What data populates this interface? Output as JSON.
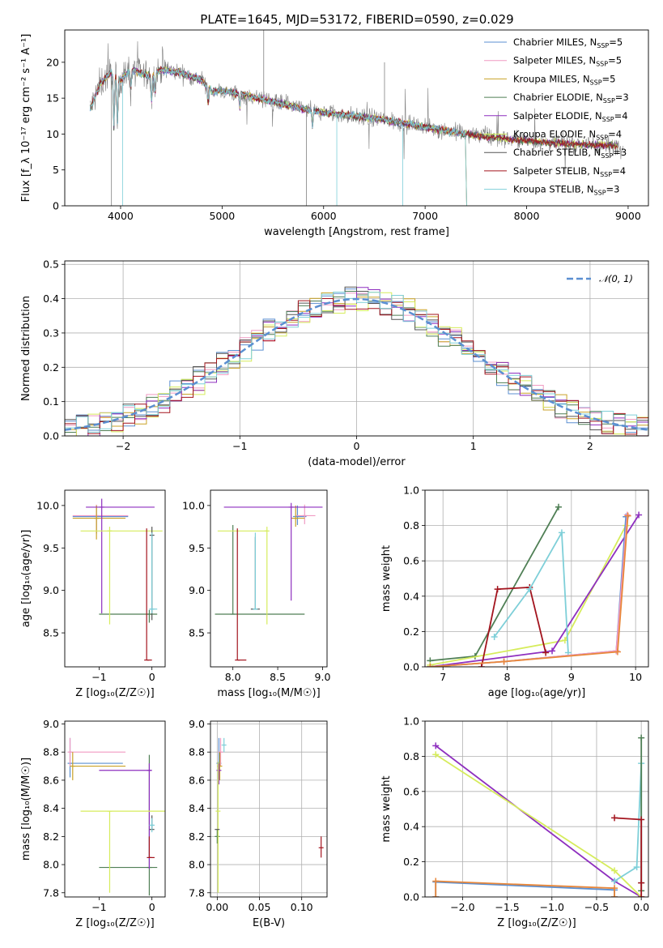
{
  "figure": {
    "title": "PLATE=1645, MJD=53172, FIBERID=0590, z=0.029"
  },
  "colors": {
    "Chabrier MILES": "#5b8fd1",
    "Salpeter MILES": "#f09ac2",
    "Kroupa MILES": "#c9a227",
    "Chabrier ELODIE": "#4f7f55",
    "Salpeter ELODIE": "#8e2fbf",
    "Kroupa ELODIE": "#d6ec5c",
    "Chabrier STELIB": "#555555",
    "Salpeter STELIB": "#a3141e",
    "Kroupa STELIB": "#7ecfd8",
    "orange": "#e8873a",
    "data": "#808080"
  },
  "chart_data": [
    {
      "id": "spectrum",
      "type": "line",
      "title": "PLATE=1645, MJD=53172, FIBERID=0590, z=0.029",
      "xlabel": "wavelength [Angstrom, rest frame]",
      "ylabel": "Flux [f_λ 10^-17 erg cm^-2 s^-1 A^-1]",
      "xlim": [
        3450,
        9200
      ],
      "ylim": [
        0,
        24.5
      ],
      "xticks": [
        4000,
        5000,
        6000,
        7000,
        8000,
        9000
      ],
      "yticks": [
        0,
        5,
        10,
        15,
        20
      ],
      "legend_position": "top-right",
      "legend": [
        {
          "name": "Chabrier MILES",
          "nssp": "5"
        },
        {
          "name": "Salpeter MILES",
          "nssp": "5"
        },
        {
          "name": "Kroupa MILES",
          "nssp": "5"
        },
        {
          "name": "Chabrier ELODIE",
          "nssp": "3"
        },
        {
          "name": "Salpeter ELODIE",
          "nssp": "4"
        },
        {
          "name": "Kroupa ELODIE",
          "nssp": "4"
        },
        {
          "name": "Chabrier STELIB",
          "nssp": "3"
        },
        {
          "name": "Salpeter STELIB",
          "nssp": "4"
        },
        {
          "name": "Kroupa STELIB",
          "nssp": "3"
        }
      ],
      "continuum": [
        [
          3700,
          13.5
        ],
        [
          3800,
          17
        ],
        [
          3900,
          18.5
        ],
        [
          4000,
          17.5
        ],
        [
          4100,
          19
        ],
        [
          4300,
          18
        ],
        [
          4400,
          19
        ],
        [
          4600,
          18.5
        ],
        [
          4800,
          17.5
        ],
        [
          4900,
          16
        ],
        [
          5000,
          16
        ],
        [
          5200,
          15.5
        ],
        [
          5500,
          14.5
        ],
        [
          5800,
          13.5
        ],
        [
          6000,
          13
        ],
        [
          6300,
          12.5
        ],
        [
          6600,
          12
        ],
        [
          7000,
          11
        ],
        [
          7400,
          10
        ],
        [
          7800,
          9.3
        ],
        [
          8200,
          8.8
        ],
        [
          8600,
          8.5
        ],
        [
          8900,
          8.4
        ]
      ]
    },
    {
      "id": "residuals",
      "type": "line",
      "xlabel": "(data-model)/error",
      "ylabel": "Normed distribution",
      "xlim": [
        -2.5,
        2.5
      ],
      "ylim": [
        0,
        0.51
      ],
      "xticks": [
        -2,
        -1,
        0,
        1,
        2
      ],
      "yticks": [
        0.0,
        0.1,
        0.2,
        0.3,
        0.4,
        0.5
      ],
      "grid": true,
      "legend_position": "top-right",
      "reference_curve": {
        "name": "𝒩(0, 1)",
        "mean": 0,
        "sigma": 1
      }
    },
    {
      "id": "age-vs-Z",
      "type": "scatter",
      "xlabel": "Z [log10(Z/Z☉)]",
      "ylabel": "age [log10(age/yr)]",
      "xlim": [
        -1.65,
        0.25
      ],
      "ylim": [
        8.1,
        10.18
      ],
      "xticks": [
        -1,
        0
      ],
      "yticks": [
        8.5,
        9.0,
        9.5,
        10.0
      ],
      "points": [
        {
          "series": "Chabrier MILES",
          "x": -1.05,
          "xerr": [
            0.45,
            0.6
          ],
          "y": 9.87,
          "yerr": [
            0.2,
            0.13
          ]
        },
        {
          "series": "Salpeter MILES",
          "x": -1.05,
          "xerr": [
            0.45,
            0.6
          ],
          "y": 9.88,
          "yerr": [
            0.2,
            0.13
          ]
        },
        {
          "series": "Kroupa MILES",
          "x": -1.05,
          "xerr": [
            0.45,
            0.55
          ],
          "y": 9.85,
          "yerr": [
            0.25,
            0.15
          ]
        },
        {
          "series": "Chabrier ELODIE",
          "x": -0.05,
          "xerr": [
            0.95,
            0.15
          ],
          "y": 8.72,
          "yerr": [
            0.1,
            0.05
          ]
        },
        {
          "series": "Salpeter ELODIE",
          "x": -0.95,
          "xerr": [
            0.3,
            1.0
          ],
          "y": 9.98,
          "yerr": [
            1.25,
            0.1
          ]
        },
        {
          "series": "Kroupa ELODIE",
          "x": -0.8,
          "xerr": [
            0.55,
            1.0
          ],
          "y": 9.7,
          "yerr": [
            1.1,
            0.05
          ]
        },
        {
          "series": "Chabrier STELIB",
          "x": 0.0,
          "xerr": [
            0.02,
            0.02
          ],
          "y": 9.65,
          "yerr": [
            1.0,
            0.1
          ]
        },
        {
          "series": "Salpeter STELIB",
          "x": -0.1,
          "xerr": [
            0.0,
            0.1
          ],
          "y": 8.18,
          "yerr": [
            0.0,
            1.55
          ]
        },
        {
          "series": "Kroupa STELIB",
          "x": 0.0,
          "xerr": [
            0.05,
            0.1
          ],
          "y": 8.78,
          "yerr": [
            0.05,
            0.9
          ]
        }
      ]
    },
    {
      "id": "age-vs-mass",
      "type": "scatter",
      "xlabel": "mass [log10(M/M☉)]",
      "ylabel": "",
      "xlim": [
        7.75,
        9.05
      ],
      "ylim": [
        8.1,
        10.18
      ],
      "xticks": [
        8.0,
        8.5,
        9.0
      ],
      "yticks": [
        8.5,
        9.0,
        9.5,
        10.0
      ],
      "points": [
        {
          "series": "Chabrier MILES",
          "x": 8.72,
          "xerr": [
            0.05,
            0.1
          ],
          "y": 9.87,
          "yerr": [
            0.1,
            0.13
          ]
        },
        {
          "series": "Salpeter MILES",
          "x": 8.8,
          "xerr": [
            0.1,
            0.12
          ],
          "y": 9.88,
          "yerr": [
            0.1,
            0.13
          ]
        },
        {
          "series": "Kroupa MILES",
          "x": 8.7,
          "xerr": [
            0.05,
            0.1
          ],
          "y": 9.85,
          "yerr": [
            0.1,
            0.15
          ]
        },
        {
          "series": "Chabrier ELODIE",
          "x": 8.0,
          "xerr": [
            0.2,
            0.8
          ],
          "y": 8.72,
          "yerr": [
            0.0,
            1.05
          ]
        },
        {
          "series": "Salpeter ELODIE",
          "x": 8.65,
          "xerr": [
            0.75,
            0.35
          ],
          "y": 9.98,
          "yerr": [
            1.1,
            0.05
          ]
        },
        {
          "series": "Kroupa ELODIE",
          "x": 8.38,
          "xerr": [
            0.55,
            0.0
          ],
          "y": 9.7,
          "yerr": [
            1.1,
            0.05
          ]
        },
        {
          "series": "Chabrier STELIB",
          "x": 8.25,
          "xerr": [
            0.05,
            0.05
          ],
          "y": 8.78,
          "yerr": [
            0.0,
            0.85
          ]
        },
        {
          "series": "Salpeter STELIB",
          "x": 8.05,
          "xerr": [
            0.0,
            0.1
          ],
          "y": 8.18,
          "yerr": [
            0.0,
            1.55
          ]
        },
        {
          "series": "Kroupa STELIB",
          "x": 8.25,
          "xerr": [
            0.02,
            0.02
          ],
          "y": 8.78,
          "yerr": [
            0.0,
            0.9
          ]
        }
      ]
    },
    {
      "id": "massweight-vs-age",
      "type": "line",
      "xlabel": "age [log10(age/yr)]",
      "ylabel": "mass weight",
      "xlim": [
        6.72,
        10.2
      ],
      "ylim": [
        0,
        1.0
      ],
      "xticks": [
        7,
        8,
        9,
        10
      ],
      "yticks": [
        0.0,
        0.2,
        0.4,
        0.6,
        0.8,
        1.0
      ],
      "grid": true,
      "series": [
        {
          "name": "Chabrier ELODIE",
          "points": [
            [
              6.8,
              0.035
            ],
            [
              7.5,
              0.06
            ],
            [
              8.8,
              0.905
            ]
          ]
        },
        {
          "name": "Kroupa ELODIE",
          "points": [
            [
              6.8,
              0.01
            ],
            [
              8.9,
              0.15
            ],
            [
              9.85,
              0.8
            ]
          ]
        },
        {
          "name": "Salpeter ELODIE",
          "points": [
            [
              6.8,
              0.0
            ],
            [
              8.7,
              0.09
            ],
            [
              10.05,
              0.86
            ]
          ]
        },
        {
          "name": "Salpeter STELIB",
          "points": [
            [
              7.6,
              0.0
            ],
            [
              7.85,
              0.44
            ],
            [
              8.35,
              0.45
            ],
            [
              8.6,
              0.08
            ]
          ]
        },
        {
          "name": "Kroupa STELIB",
          "points": [
            [
              7.8,
              0.17
            ],
            [
              8.35,
              0.44
            ],
            [
              8.85,
              0.76
            ],
            [
              8.95,
              0.08
            ]
          ]
        },
        {
          "name": "Chabrier MILES",
          "points": [
            [
              6.8,
              0.0
            ],
            [
              7.95,
              0.03
            ],
            [
              9.7,
              0.09
            ],
            [
              9.85,
              0.85
            ]
          ]
        },
        {
          "name": "Salpeter MILES",
          "points": [
            [
              6.8,
              0.0
            ],
            [
              7.95,
              0.03
            ],
            [
              9.7,
              0.09
            ],
            [
              9.87,
              0.86
            ]
          ]
        },
        {
          "name": "orange",
          "points": [
            [
              6.8,
              0.0
            ],
            [
              7.95,
              0.03
            ],
            [
              9.72,
              0.085
            ],
            [
              9.88,
              0.855
            ]
          ]
        }
      ]
    },
    {
      "id": "mass-vs-Z",
      "type": "scatter",
      "xlabel": "Z [log10(Z/Z☉)]",
      "ylabel": "mass [log10(M/M☉)]",
      "xlim": [
        -1.65,
        0.25
      ],
      "ylim": [
        7.77,
        9.02
      ],
      "xticks": [
        -1,
        0
      ],
      "yticks": [
        7.8,
        8.0,
        8.2,
        8.4,
        8.6,
        8.8,
        9.0
      ],
      "points": [
        {
          "series": "Chabrier MILES",
          "x": -1.55,
          "xerr": [
            0.0,
            1.0
          ],
          "y": 8.72,
          "yerr": [
            0.1,
            0.18
          ]
        },
        {
          "series": "Salpeter MILES",
          "x": -1.55,
          "xerr": [
            0.0,
            1.05
          ],
          "y": 8.8,
          "yerr": [
            0.1,
            0.1
          ]
        },
        {
          "series": "Kroupa MILES",
          "x": -1.5,
          "xerr": [
            0.0,
            1.0
          ],
          "y": 8.7,
          "yerr": [
            0.1,
            0.1
          ]
        },
        {
          "series": "Chabrier ELODIE",
          "x": -0.05,
          "xerr": [
            0.95,
            0.15
          ],
          "y": 7.98,
          "yerr": [
            0.2,
            0.8
          ]
        },
        {
          "series": "Salpeter ELODIE",
          "x": -0.05,
          "xerr": [
            0.95,
            0.05
          ],
          "y": 8.67,
          "yerr": [
            0.7,
            0.05
          ]
        },
        {
          "series": "Kroupa ELODIE",
          "x": -0.8,
          "xerr": [
            0.55,
            1.05
          ],
          "y": 8.38,
          "yerr": [
            0.58,
            0.0
          ]
        },
        {
          "series": "Chabrier STELIB",
          "x": 0.0,
          "xerr": [
            0.02,
            0.02
          ],
          "y": 8.25,
          "yerr": [
            0.0,
            0.1
          ]
        },
        {
          "series": "Salpeter STELIB",
          "x": -0.05,
          "xerr": [
            0.0,
            0.1
          ],
          "y": 8.05,
          "yerr": [
            0.0,
            0.15
          ]
        },
        {
          "series": "Kroupa STELIB",
          "x": 0.0,
          "xerr": [
            0.05,
            0.05
          ],
          "y": 8.28,
          "yerr": [
            0.05,
            0.05
          ]
        }
      ]
    },
    {
      "id": "mass-vs-EBV",
      "type": "scatter",
      "xlabel": "E(B-V)",
      "ylabel": "",
      "xlim": [
        -0.008,
        0.13
      ],
      "ylim": [
        7.77,
        9.02
      ],
      "xticks": [
        0.0,
        0.05,
        0.1
      ],
      "yticks": [
        7.8,
        8.0,
        8.2,
        8.4,
        8.6,
        8.8,
        9.0
      ],
      "grid": true,
      "points": [
        {
          "series": "Chabrier MILES",
          "x": 0.002,
          "y": 8.72,
          "yerr": [
            0.1,
            0.18
          ]
        },
        {
          "series": "Salpeter MILES",
          "x": 0.004,
          "y": 8.8,
          "yerr": [
            0.1,
            0.1
          ]
        },
        {
          "series": "Kroupa MILES",
          "x": 0.003,
          "y": 8.7,
          "yerr": [
            0.1,
            0.1
          ]
        },
        {
          "series": "Chabrier ELODIE",
          "x": 0.0,
          "y": 8.2,
          "yerr": [
            0.05,
            0.05
          ]
        },
        {
          "series": "Salpeter ELODIE",
          "x": 0.002,
          "y": 8.67,
          "yerr": [
            0.1,
            0.05
          ]
        },
        {
          "series": "Kroupa ELODIE",
          "x": 0.001,
          "y": 8.38,
          "yerr": [
            0.58,
            0.35
          ]
        },
        {
          "series": "Chabrier STELIB",
          "x": 0.0,
          "y": 8.25,
          "yerr": [
            0.0,
            0.0
          ]
        },
        {
          "series": "Salpeter STELIB",
          "x": 0.123,
          "y": 8.12,
          "yerr": [
            0.07,
            0.08
          ]
        },
        {
          "series": "Kroupa STELIB",
          "x": 0.008,
          "y": 8.85,
          "yerr": [
            0.05,
            0.05
          ]
        }
      ]
    },
    {
      "id": "massweight-vs-Z",
      "type": "line",
      "xlabel": "Z [log10(Z/Z☉)]",
      "ylabel": "mass weight",
      "xlim": [
        -2.42,
        0.08
      ],
      "ylim": [
        0,
        1.0
      ],
      "xticks": [
        -2.0,
        -1.5,
        -1.0,
        -0.5,
        0.0
      ],
      "yticks": [
        0.0,
        0.2,
        0.4,
        0.6,
        0.8,
        1.0
      ],
      "grid": true,
      "series": [
        {
          "name": "Salpeter ELODIE",
          "points": [
            [
              -2.3,
              0.86
            ],
            [
              -0.3,
              0.09
            ],
            [
              0.0,
              0.0
            ]
          ]
        },
        {
          "name": "Kroupa ELODIE",
          "points": [
            [
              -2.3,
              0.81
            ],
            [
              -0.3,
              0.15
            ],
            [
              0.0,
              0.0
            ]
          ]
        },
        {
          "name": "Chabrier MILES",
          "points": [
            [
              -2.3,
              0.0
            ],
            [
              -2.3,
              0.085
            ],
            [
              -0.3,
              0.04
            ],
            [
              -0.3,
              0.0
            ]
          ]
        },
        {
          "name": "orange",
          "points": [
            [
              -2.3,
              0.0
            ],
            [
              -2.3,
              0.09
            ],
            [
              -0.3,
              0.05
            ],
            [
              -0.3,
              0.0
            ]
          ]
        },
        {
          "name": "Kroupa STELIB",
          "points": [
            [
              -0.3,
              0.09
            ],
            [
              -0.05,
              0.17
            ],
            [
              0.0,
              0.76
            ],
            [
              0.0,
              0.08
            ]
          ]
        },
        {
          "name": "Chabrier ELODIE",
          "points": [
            [
              0.0,
              0.035
            ],
            [
              0.0,
              0.905
            ]
          ]
        },
        {
          "name": "Salpeter STELIB",
          "points": [
            [
              -0.3,
              0.45
            ],
            [
              0.0,
              0.44
            ],
            [
              0.0,
              0.08
            ],
            [
              0.0,
              0.0
            ]
          ]
        }
      ]
    }
  ]
}
